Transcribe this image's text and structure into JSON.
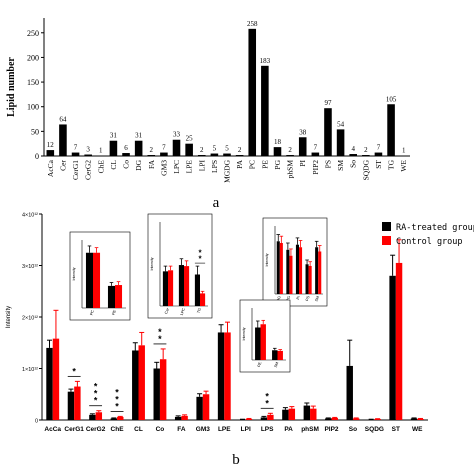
{
  "chart_data": [
    {
      "type": "bar",
      "panel_label": "a",
      "ylabel": "Lipid number",
      "ylim": [
        0,
        280
      ],
      "yticks": [
        0,
        50,
        100,
        150,
        200,
        250
      ],
      "bar_color": "#000000",
      "categories": [
        "AcCa",
        "Cer",
        "CerG1",
        "CerG2",
        "ChE",
        "CL",
        "Co",
        "DG",
        "FA",
        "GM3",
        "LPC",
        "LPE",
        "LPI",
        "LPS",
        "MGDG",
        "PA",
        "PC",
        "PE",
        "PG",
        "phSM",
        "PI",
        "PIP2",
        "PS",
        "SM",
        "So",
        "SQDG",
        "ST",
        "TG",
        "WE"
      ],
      "values": [
        12,
        64,
        7,
        3,
        1,
        31,
        6,
        31,
        2,
        7,
        33,
        25,
        2,
        5,
        5,
        2,
        258,
        183,
        18,
        2,
        38,
        7,
        97,
        54,
        4,
        2,
        7,
        105,
        1
      ],
      "data_labels": [
        "12",
        "64",
        "7",
        "3",
        "1",
        "31",
        "6",
        "31",
        "2",
        "7",
        "33",
        "25",
        "2",
        "5",
        "5",
        "2",
        "258",
        "183",
        "18",
        "2",
        "38",
        "7",
        "97",
        "54",
        "4",
        "2",
        "7",
        "105",
        "1"
      ]
    },
    {
      "type": "bar",
      "panel_label": "b",
      "ylabel": "Intensity",
      "ylim": [
        0,
        4
      ],
      "ytick_labels": [
        "0",
        "1×10¹²",
        "2×10¹²",
        "3×10¹²",
        "4×10¹²"
      ],
      "categories": [
        "AcCa",
        "CerG1",
        "CerG2",
        "ChE",
        "CL",
        "Co",
        "FA",
        "GM3",
        "LPE",
        "LPI",
        "LPS",
        "PA",
        "phSM",
        "PIP2",
        "So",
        "SQDG",
        "ST",
        "WE"
      ],
      "legend_position": "top-right",
      "series": [
        {
          "name": "RA-treated group",
          "color": "#000000",
          "values": [
            1.4,
            0.55,
            0.1,
            0.03,
            1.35,
            1.0,
            0.06,
            0.45,
            1.7,
            0.01,
            0.05,
            0.2,
            0.28,
            0.03,
            1.05,
            0.01,
            2.8,
            0.03
          ],
          "errors": [
            0.15,
            0.05,
            0.02,
            0.01,
            0.15,
            0.12,
            0.02,
            0.06,
            0.15,
            0.005,
            0.02,
            0.04,
            0.05,
            0.01,
            0.5,
            0.005,
            0.4,
            0.01
          ]
        },
        {
          "name": "Control group",
          "color": "#ff0000",
          "values": [
            1.58,
            0.65,
            0.15,
            0.06,
            1.45,
            1.18,
            0.08,
            0.5,
            1.7,
            0.02,
            0.1,
            0.22,
            0.22,
            0.04,
            0.03,
            0.02,
            3.05,
            0.02
          ],
          "errors": [
            0.55,
            0.1,
            0.03,
            0.01,
            0.25,
            0.2,
            0.02,
            0.06,
            0.2,
            0.01,
            0.03,
            0.04,
            0.05,
            0.01,
            0.01,
            0.005,
            0.45,
            0.01
          ]
        }
      ],
      "significance": [
        {
          "category": "CerG1",
          "mark": "*"
        },
        {
          "category": "CerG2",
          "mark": "* * *"
        },
        {
          "category": "ChE",
          "mark": "* * *"
        },
        {
          "category": "Co",
          "mark": "* *"
        },
        {
          "category": "LPS",
          "mark": "* *"
        }
      ],
      "insets": [
        {
          "ylabel": "Intensity",
          "categories": [
            "PC",
            "PE"
          ],
          "ylim": [
            0,
            8
          ],
          "series": [
            {
              "name": "RA-treated group",
              "color": "#000000",
              "values": [
                6.5,
                2.6
              ],
              "errors": [
                0.8,
                0.4
              ]
            },
            {
              "name": "Control group",
              "color": "#ff0000",
              "values": [
                6.5,
                2.7
              ],
              "errors": [
                0.6,
                0.4
              ]
            }
          ],
          "significance": []
        },
        {
          "ylabel": "Intensity",
          "categories": [
            "Cer",
            "LPC",
            "TG"
          ],
          "ylim": [
            0,
            8
          ],
          "series": [
            {
              "name": "RA-treated group",
              "color": "#000000",
              "values": [
                3.3,
                3.9,
                3.0
              ],
              "errors": [
                0.5,
                0.6,
                0.8
              ]
            },
            {
              "name": "Control group",
              "color": "#ff0000",
              "values": [
                3.4,
                3.8,
                1.2
              ],
              "errors": [
                0.4,
                0.5,
                0.2
              ]
            }
          ],
          "significance": [
            {
              "category": "TG",
              "mark": "* *"
            }
          ]
        },
        {
          "ylabel": "Intensity",
          "categories": [
            "DG",
            "PG",
            "PI",
            "PS",
            "SM"
          ],
          "ylim": [
            0,
            8
          ],
          "series": [
            {
              "name": "RA-treated group",
              "color": "#000000",
              "values": [
                6.2,
                5.2,
                5.8,
                3.5,
                5.5
              ],
              "errors": [
                0.8,
                0.8,
                0.8,
                0.5,
                0.7
              ]
            },
            {
              "name": "Control group",
              "color": "#ff0000",
              "values": [
                6.0,
                4.5,
                5.5,
                3.3,
                5.0
              ],
              "errors": [
                0.8,
                0.8,
                0.8,
                0.5,
                0.7
              ]
            }
          ],
          "significance": []
        },
        {
          "ylabel": "Intensity",
          "categories": [
            "PE",
            "SM"
          ],
          "ylim": [
            0,
            8
          ],
          "series": [
            {
              "name": "RA-treated group",
              "color": "#000000",
              "values": [
                5.0,
                1.5
              ],
              "errors": [
                1.0,
                0.3
              ]
            },
            {
              "name": "Control group",
              "color": "#ff0000",
              "values": [
                5.5,
                1.4
              ],
              "errors": [
                0.6,
                0.2
              ]
            }
          ],
          "significance": []
        }
      ]
    }
  ]
}
